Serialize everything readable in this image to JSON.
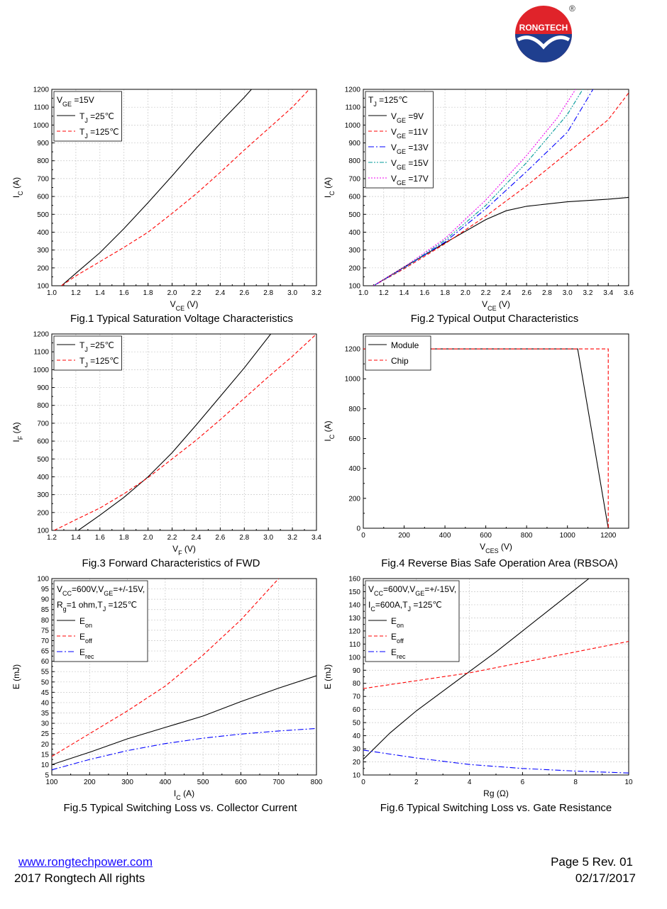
{
  "header": {
    "logo_text": "RONGTECH",
    "registered_mark": "®",
    "colors": {
      "red": "#e0232a",
      "blue": "#1f3f8f"
    }
  },
  "chart_data": [
    {
      "id": "fig1",
      "type": "line",
      "title": "Fig.1 Typical Saturation Voltage Characteristics",
      "xlabel": "V_CE (V)",
      "ylabel": "I_C (A)",
      "xlim": [
        1.0,
        3.2
      ],
      "ylim": [
        100,
        1200
      ],
      "xticks": [
        1.0,
        1.2,
        1.4,
        1.6,
        1.8,
        2.0,
        2.2,
        2.4,
        2.6,
        2.8,
        3.0,
        3.2
      ],
      "xtick_labels": [
        "1.0",
        "1.2",
        "1.4",
        "1.6",
        "1.8",
        "2.0",
        "2.2",
        "2.4",
        "2.6",
        "2.8",
        "3.0",
        "3.2"
      ],
      "yticks": [
        100,
        200,
        300,
        400,
        500,
        600,
        700,
        800,
        900,
        1000,
        1100,
        1200
      ],
      "ytick_labels": [
        "100",
        "200",
        "300",
        "400",
        "500",
        "600",
        "700",
        "800",
        "900",
        "1000",
        "1100",
        "1200"
      ],
      "legend": {
        "position": "top-left",
        "header": "V_GE =15V"
      },
      "grid": true,
      "series": [
        {
          "name": "T_J =25℃",
          "color": "#000000",
          "dash": "",
          "x": [
            1.08,
            1.2,
            1.4,
            1.6,
            1.8,
            2.0,
            2.2,
            2.4,
            2.6,
            2.66
          ],
          "y": [
            100,
            170,
            285,
            420,
            565,
            715,
            870,
            1015,
            1155,
            1200
          ]
        },
        {
          "name": "T_J =125℃",
          "color": "#ff0000",
          "dash": "5,3",
          "x": [
            1.08,
            1.2,
            1.4,
            1.6,
            1.8,
            2.0,
            2.2,
            2.4,
            2.6,
            2.8,
            3.0,
            3.14
          ],
          "y": [
            100,
            155,
            235,
            315,
            400,
            505,
            615,
            735,
            860,
            980,
            1100,
            1200
          ]
        }
      ]
    },
    {
      "id": "fig2",
      "type": "line",
      "title": "Fig.2 Typical Output Characteristics",
      "xlabel": "V_CE (V)",
      "ylabel": "I_C (A)",
      "xlim": [
        1.0,
        3.6
      ],
      "ylim": [
        100,
        1200
      ],
      "xticks": [
        1.0,
        1.2,
        1.4,
        1.6,
        1.8,
        2.0,
        2.2,
        2.4,
        2.6,
        2.8,
        3.0,
        3.2,
        3.4,
        3.6
      ],
      "xtick_labels": [
        "1.0",
        "1.2",
        "1.4",
        "1.6",
        "1.8",
        "2.0",
        "2.2",
        "2.4",
        "2.6",
        "2.8",
        "3.0",
        "3.2",
        "3.4",
        "3.6"
      ],
      "yticks": [
        100,
        200,
        300,
        400,
        500,
        600,
        700,
        800,
        900,
        1000,
        1100,
        1200
      ],
      "ytick_labels": [
        "100",
        "200",
        "300",
        "400",
        "500",
        "600",
        "700",
        "800",
        "900",
        "1000",
        "1100",
        "1200"
      ],
      "legend": {
        "position": "top-left",
        "header": "T_J =125℃"
      },
      "grid": true,
      "series": [
        {
          "name": "V_GE =9V",
          "color": "#000000",
          "dash": "",
          "x": [
            1.1,
            1.4,
            1.8,
            2.2,
            2.4,
            2.6,
            3.0,
            3.4,
            3.6
          ],
          "y": [
            100,
            205,
            340,
            470,
            520,
            545,
            570,
            585,
            595
          ]
        },
        {
          "name": "V_GE =11V",
          "color": "#ff0000",
          "dash": "5,3",
          "x": [
            1.1,
            1.4,
            1.8,
            2.2,
            2.6,
            3.0,
            3.4,
            3.6
          ],
          "y": [
            100,
            195,
            335,
            490,
            660,
            845,
            1030,
            1180
          ]
        },
        {
          "name": "V_GE =13V",
          "color": "#0000ff",
          "dash": "8,3,2,3",
          "x": [
            1.1,
            1.4,
            1.8,
            2.2,
            2.6,
            3.0,
            3.25
          ],
          "y": [
            100,
            200,
            345,
            530,
            740,
            960,
            1200
          ]
        },
        {
          "name": "V_GE =15V",
          "color": "#009999",
          "dash": "6,2,2,2,2,2",
          "x": [
            1.1,
            1.4,
            1.8,
            2.2,
            2.6,
            3.0,
            3.15
          ],
          "y": [
            100,
            200,
            355,
            550,
            790,
            1060,
            1200
          ]
        },
        {
          "name": "V_GE =17V",
          "color": "#ee00ee",
          "dash": "2,2",
          "x": [
            1.1,
            1.4,
            1.8,
            2.2,
            2.6,
            2.9,
            3.08
          ],
          "y": [
            100,
            205,
            365,
            580,
            830,
            1040,
            1200
          ]
        }
      ]
    },
    {
      "id": "fig3",
      "type": "line",
      "title": "Fig.3  Forward Characteristics of FWD",
      "xlabel": "V_F (V)",
      "ylabel": "I_F (A)",
      "xlim": [
        1.2,
        3.4
      ],
      "ylim": [
        100,
        1200
      ],
      "xticks": [
        1.2,
        1.4,
        1.6,
        1.8,
        2.0,
        2.2,
        2.4,
        2.6,
        2.8,
        3.0,
        3.2,
        3.4
      ],
      "xtick_labels": [
        "1.2",
        "1.4",
        "1.6",
        "1.8",
        "2.0",
        "2.2",
        "2.4",
        "2.6",
        "2.8",
        "3.0",
        "3.2",
        "3.4"
      ],
      "yticks": [
        100,
        200,
        300,
        400,
        500,
        600,
        700,
        800,
        900,
        1000,
        1100,
        1200
      ],
      "ytick_labels": [
        "100",
        "200",
        "300",
        "400",
        "500",
        "600",
        "700",
        "800",
        "900",
        "1000",
        "1100",
        "1200"
      ],
      "legend": {
        "position": "top-left",
        "header": ""
      },
      "grid": true,
      "series": [
        {
          "name": "T_J =25℃",
          "color": "#000000",
          "dash": "",
          "x": [
            1.42,
            1.6,
            1.8,
            2.0,
            2.2,
            2.4,
            2.6,
            2.8,
            3.02
          ],
          "y": [
            100,
            185,
            285,
            400,
            535,
            690,
            850,
            1010,
            1200
          ]
        },
        {
          "name": "T_J =125℃",
          "color": "#ff0000",
          "dash": "5,3",
          "x": [
            1.22,
            1.4,
            1.6,
            1.8,
            2.0,
            2.2,
            2.4,
            2.6,
            2.8,
            3.0,
            3.2,
            3.4
          ],
          "y": [
            100,
            160,
            225,
            305,
            395,
            500,
            605,
            720,
            840,
            960,
            1075,
            1200
          ]
        }
      ]
    },
    {
      "id": "fig4",
      "type": "line",
      "title": "Fig.4 Reverse Bias Safe Operation Area (RBSOA)",
      "xlabel": "V_CES (V)",
      "ylabel": "I_C (A)",
      "xlim": [
        0,
        1300
      ],
      "ylim": [
        0,
        1300
      ],
      "xticks": [
        0,
        200,
        400,
        600,
        800,
        1000,
        1200
      ],
      "xtick_labels": [
        "0",
        "200",
        "400",
        "600",
        "800",
        "1000",
        "1200"
      ],
      "yticks": [
        0,
        200,
        400,
        600,
        800,
        1000,
        1200
      ],
      "ytick_labels": [
        "0",
        "200",
        "400",
        "600",
        "800",
        "1000",
        "1200"
      ],
      "legend": {
        "position": "top-left",
        "header": ""
      },
      "grid": false,
      "series": [
        {
          "name": "Module",
          "color": "#000000",
          "dash": "",
          "x": [
            0,
            1050,
            1200
          ],
          "y": [
            1200,
            1200,
            0
          ]
        },
        {
          "name": "Chip",
          "color": "#ff0000",
          "dash": "5,3",
          "x": [
            0,
            1200,
            1200
          ],
          "y": [
            1200,
            1200,
            0
          ]
        }
      ]
    },
    {
      "id": "fig5",
      "type": "line",
      "title": "Fig.5 Typical Switching Loss vs. Collector Current",
      "xlabel": "I_C (A)",
      "ylabel": "E (mJ)",
      "xlim": [
        100,
        800
      ],
      "ylim": [
        5,
        100
      ],
      "xticks": [
        100,
        200,
        300,
        400,
        500,
        600,
        700,
        800
      ],
      "xtick_labels": [
        "100",
        "200",
        "300",
        "400",
        "500",
        "600",
        "700",
        "800"
      ],
      "yticks": [
        5,
        10,
        15,
        20,
        25,
        30,
        35,
        40,
        45,
        50,
        55,
        60,
        65,
        70,
        75,
        80,
        85,
        90,
        95,
        100
      ],
      "ytick_labels": [
        "5",
        "10",
        "15",
        "20",
        "25",
        "30",
        "35",
        "40",
        "45",
        "50",
        "55",
        "60",
        "65",
        "70",
        "75",
        "80",
        "85",
        "90",
        "95",
        "100"
      ],
      "legend": {
        "position": "top-left",
        "header": "V_CC=600V,V_GE=+/-15V,|R_g=1 ohm,T_J =125℃"
      },
      "grid": true,
      "series": [
        {
          "name": "E_on",
          "color": "#000000",
          "dash": "",
          "x": [
            100,
            200,
            300,
            400,
            500,
            600,
            700,
            800
          ],
          "y": [
            10,
            16,
            22.5,
            28,
            33.5,
            40.5,
            47,
            53
          ]
        },
        {
          "name": "E_off",
          "color": "#ff0000",
          "dash": "5,3",
          "x": [
            100,
            200,
            300,
            400,
            500,
            600,
            700
          ],
          "y": [
            14,
            25,
            36,
            48,
            63,
            80,
            100
          ]
        },
        {
          "name": "E_rec",
          "color": "#0000ff",
          "dash": "8,3,2,3",
          "x": [
            100,
            200,
            300,
            400,
            500,
            600,
            700,
            800
          ],
          "y": [
            7.5,
            12.5,
            16.8,
            20.2,
            22.8,
            24.8,
            26.3,
            27.5
          ]
        }
      ]
    },
    {
      "id": "fig6",
      "type": "line",
      "title": "Fig.6 Typical Switching Loss vs. Gate Resistance",
      "xlabel": "Rg (Ω)",
      "ylabel": "E (mJ)",
      "xlim": [
        0,
        10
      ],
      "ylim": [
        10,
        160
      ],
      "xticks": [
        0,
        2,
        4,
        6,
        8,
        10
      ],
      "xtick_labels": [
        "0",
        "2",
        "4",
        "6",
        "8",
        "10"
      ],
      "yticks": [
        10,
        20,
        30,
        40,
        50,
        60,
        70,
        80,
        90,
        100,
        110,
        120,
        130,
        140,
        150,
        160
      ],
      "ytick_labels": [
        "10",
        "20",
        "30",
        "40",
        "50",
        "60",
        "70",
        "80",
        "90",
        "100",
        "110",
        "120",
        "130",
        "140",
        "150",
        "160"
      ],
      "legend": {
        "position": "top-left",
        "header": "V_CC=600V,V_GE=+/-15V,|I_C=600A,T_J =125℃"
      },
      "grid": true,
      "series": [
        {
          "name": "E_on",
          "color": "#000000",
          "dash": "",
          "x": [
            0,
            1,
            2,
            3,
            4,
            5,
            6,
            7,
            8,
            8.5
          ],
          "y": [
            22,
            42,
            59,
            74,
            89,
            104,
            120,
            136,
            152,
            160
          ]
        },
        {
          "name": "E_off",
          "color": "#ff0000",
          "dash": "5,3",
          "x": [
            0,
            2,
            4,
            6,
            8,
            10
          ],
          "y": [
            76,
            82,
            88,
            96,
            104,
            112
          ]
        },
        {
          "name": "E_rec",
          "color": "#0000ff",
          "dash": "8,3,2,3",
          "x": [
            0,
            1,
            2,
            4,
            6,
            8,
            10
          ],
          "y": [
            29,
            26,
            23,
            18,
            15,
            13,
            11.5
          ]
        }
      ]
    }
  ],
  "footer": {
    "website": "www.rongtechpower.com",
    "copyright": "2017 Rongtech All rights",
    "page": "Page 5  Rev. 01",
    "date": "02/17/2017"
  }
}
